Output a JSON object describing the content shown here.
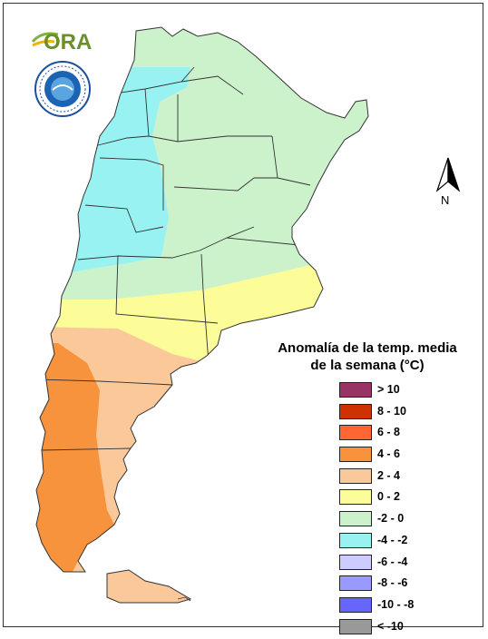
{
  "logo": {
    "text": "ORA",
    "seal_text": "SERVICIO METEOROLOGICO NACIONAL ARGENTINA"
  },
  "north_arrow": {
    "label": "N"
  },
  "legend": {
    "title_line1": "Anomalía de la temp. media",
    "title_line2": "de la semana (°C)",
    "items": [
      {
        "label": "> 10",
        "color": "#993366"
      },
      {
        "label": "8 - 10",
        "color": "#cc3300"
      },
      {
        "label": "6 - 8",
        "color": "#ff6633"
      },
      {
        "label": "4 - 6",
        "color": "#f7933d"
      },
      {
        "label": "2 - 4",
        "color": "#fbc89a"
      },
      {
        "label": "0 - 2",
        "color": "#fcfc99"
      },
      {
        "label": "-2 - 0",
        "color": "#ccf2cc"
      },
      {
        "label": "-4 - -2",
        "color": "#99f2f2"
      },
      {
        "label": "-6 - -4",
        "color": "#ccccff"
      },
      {
        "label": "-8 - -6",
        "color": "#9999ff"
      },
      {
        "label": "-10 - -8",
        "color": "#6666ff"
      },
      {
        "label": "< -10",
        "color": "#999999"
      }
    ]
  }
}
